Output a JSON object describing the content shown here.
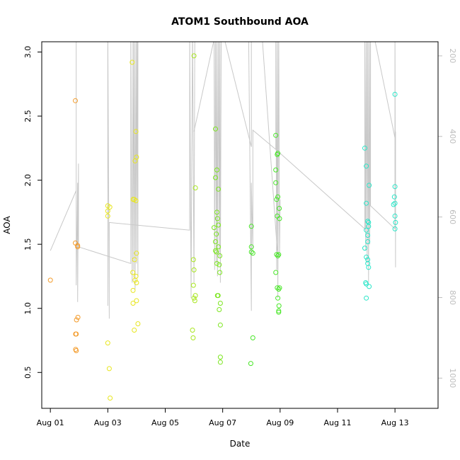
{
  "chart_data": {
    "type": "scatter",
    "title": "ATOM1 Southbound AOA",
    "xlabel": "Date",
    "ylabel": "AOA",
    "x_unit": "days since Aug 01",
    "xlim": [
      -0.3,
      13.5
    ],
    "ylim": [
      0.22,
      3.08
    ],
    "x_ticks": [
      {
        "value": 0,
        "label": "Aug 01"
      },
      {
        "value": 2,
        "label": "Aug 03"
      },
      {
        "value": 4,
        "label": "Aug 05"
      },
      {
        "value": 6,
        "label": "Aug 07"
      },
      {
        "value": 8,
        "label": "Aug 09"
      },
      {
        "value": 10,
        "label": "Aug 11"
      },
      {
        "value": 12,
        "label": "Aug 13"
      }
    ],
    "y_ticks": [
      {
        "value": 0.5,
        "label": "0.5"
      },
      {
        "value": 1.0,
        "label": "1.0"
      },
      {
        "value": 1.5,
        "label": "1.5"
      },
      {
        "value": 2.0,
        "label": "2.0"
      },
      {
        "value": 2.5,
        "label": "2.5"
      },
      {
        "value": 3.0,
        "label": "3.0"
      }
    ],
    "y2_lim": [
      1075,
      165
    ],
    "y2_ticks": [
      {
        "value": 200,
        "label": "200"
      },
      {
        "value": 400,
        "label": "400"
      },
      {
        "value": 600,
        "label": "600"
      },
      {
        "value": 800,
        "label": "800"
      },
      {
        "value": 1000,
        "label": "1000"
      }
    ],
    "line_color": "#c8c8c8",
    "point_groups": [
      {
        "color": "#f39b2a",
        "points": [
          [
            0.0,
            1.22
          ],
          [
            0.87,
            2.62
          ],
          [
            0.87,
            1.51
          ],
          [
            0.95,
            1.48
          ],
          [
            0.95,
            1.49
          ],
          [
            0.88,
            0.8
          ],
          [
            0.9,
            0.8
          ],
          [
            0.91,
            0.91
          ],
          [
            0.96,
            0.93
          ],
          [
            0.88,
            0.68
          ],
          [
            0.9,
            0.67
          ]
        ]
      },
      {
        "color": "#e8e61f",
        "points": [
          [
            2.0,
            1.8
          ],
          [
            2.0,
            1.76
          ],
          [
            2.07,
            1.79
          ],
          [
            2.0,
            1.72
          ],
          [
            2.0,
            0.73
          ],
          [
            2.05,
            0.53
          ],
          [
            2.08,
            0.3
          ],
          [
            2.85,
            2.92
          ],
          [
            2.98,
            2.38
          ],
          [
            3.0,
            2.18
          ],
          [
            2.95,
            2.15
          ],
          [
            2.88,
            1.85
          ],
          [
            2.92,
            1.85
          ],
          [
            2.98,
            1.84
          ],
          [
            3.0,
            1.43
          ],
          [
            2.93,
            1.38
          ],
          [
            2.87,
            1.28
          ],
          [
            2.98,
            1.25
          ],
          [
            2.95,
            1.22
          ],
          [
            3.0,
            1.2
          ],
          [
            2.88,
            1.14
          ],
          [
            3.0,
            1.06
          ],
          [
            2.88,
            1.04
          ],
          [
            3.05,
            0.88
          ],
          [
            2.92,
            0.83
          ]
        ]
      },
      {
        "color": "#a8e61f",
        "points": [
          [
            5.0,
            2.97
          ],
          [
            5.05,
            1.94
          ],
          [
            4.98,
            1.38
          ],
          [
            5.0,
            1.3
          ],
          [
            4.98,
            1.18
          ],
          [
            5.05,
            1.1
          ],
          [
            5.0,
            1.08
          ],
          [
            5.03,
            1.06
          ],
          [
            4.95,
            0.83
          ],
          [
            4.97,
            0.77
          ]
        ]
      },
      {
        "color": "#7ce61f",
        "points": [
          [
            5.75,
            2.4
          ],
          [
            5.8,
            2.08
          ],
          [
            5.75,
            2.02
          ],
          [
            5.85,
            1.93
          ],
          [
            5.8,
            1.75
          ],
          [
            5.82,
            1.7
          ],
          [
            5.85,
            1.65
          ],
          [
            5.7,
            1.63
          ],
          [
            5.78,
            1.58
          ],
          [
            5.75,
            1.52
          ],
          [
            5.75,
            1.45
          ],
          [
            5.78,
            1.44
          ],
          [
            5.85,
            1.48
          ],
          [
            5.9,
            1.41
          ],
          [
            5.8,
            1.35
          ],
          [
            5.88,
            1.34
          ],
          [
            5.9,
            1.28
          ],
          [
            5.82,
            1.1
          ],
          [
            5.84,
            1.1
          ],
          [
            5.92,
            1.04
          ],
          [
            5.88,
            0.99
          ],
          [
            5.92,
            0.87
          ],
          [
            5.92,
            0.62
          ],
          [
            5.92,
            0.58
          ]
        ]
      },
      {
        "color": "#49e628",
        "points": [
          [
            7.0,
            1.64
          ],
          [
            7.0,
            1.48
          ],
          [
            7.0,
            1.44
          ],
          [
            7.05,
            1.43
          ],
          [
            7.05,
            0.77
          ],
          [
            6.98,
            0.57
          ],
          [
            7.85,
            2.35
          ],
          [
            7.92,
            2.21
          ],
          [
            7.9,
            2.2
          ],
          [
            7.85,
            2.08
          ],
          [
            7.85,
            1.98
          ],
          [
            7.92,
            1.87
          ],
          [
            7.88,
            1.85
          ],
          [
            7.97,
            1.78
          ],
          [
            7.9,
            1.72
          ],
          [
            7.98,
            1.7
          ],
          [
            7.88,
            1.42
          ],
          [
            7.92,
            1.41
          ],
          [
            7.95,
            1.42
          ],
          [
            7.85,
            1.28
          ],
          [
            7.9,
            1.16
          ],
          [
            7.95,
            1.15
          ],
          [
            7.98,
            1.16
          ],
          [
            7.92,
            1.08
          ],
          [
            7.96,
            1.02
          ],
          [
            7.95,
            0.98
          ],
          [
            7.95,
            0.97
          ]
        ]
      },
      {
        "color": "#2ae6c8",
        "points": [
          [
            10.95,
            2.25
          ],
          [
            11.0,
            2.11
          ],
          [
            11.1,
            1.96
          ],
          [
            11.0,
            1.82
          ],
          [
            11.05,
            1.68
          ],
          [
            11.08,
            1.67
          ],
          [
            11.08,
            1.64
          ],
          [
            11.0,
            1.61
          ],
          [
            11.05,
            1.57
          ],
          [
            11.05,
            1.52
          ],
          [
            10.95,
            1.47
          ],
          [
            11.0,
            1.4
          ],
          [
            11.05,
            1.38
          ],
          [
            11.05,
            1.35
          ],
          [
            11.08,
            1.32
          ],
          [
            10.98,
            1.2
          ],
          [
            11.0,
            1.19
          ],
          [
            11.1,
            1.17
          ],
          [
            11.0,
            1.08
          ],
          [
            12.0,
            2.67
          ],
          [
            12.0,
            1.95
          ],
          [
            11.98,
            1.87
          ],
          [
            12.0,
            1.82
          ],
          [
            11.95,
            1.81
          ],
          [
            12.0,
            1.72
          ],
          [
            12.02,
            1.67
          ],
          [
            12.0,
            1.62
          ]
        ]
      }
    ],
    "paths": [
      [
        [
          0.0,
          1.45
        ],
        [
          0.9,
          1.92
        ],
        [
          0.9,
          3.2
        ],
        [
          0.9,
          1.18
        ],
        [
          0.95,
          1.98
        ],
        [
          0.95,
          1.05
        ],
        [
          0.98,
          2.13
        ],
        [
          0.98,
          1.48
        ],
        [
          2.8,
          1.35
        ],
        [
          2.8,
          3.2
        ],
        [
          2.85,
          1.2
        ],
        [
          2.88,
          3.2
        ],
        [
          2.9,
          1.3
        ],
        [
          2.92,
          3.2
        ],
        [
          2.95,
          1.15
        ],
        [
          2.98,
          3.2
        ],
        [
          3.0,
          1.35
        ],
        [
          3.02,
          3.2
        ],
        [
          3.05,
          1.25
        ],
        [
          3.05,
          3.2
        ]
      ],
      [
        [
          2.0,
          1.02
        ],
        [
          2.0,
          3.2
        ],
        [
          2.05,
          0.92
        ],
        [
          2.05,
          1.67
        ],
        [
          4.85,
          1.61
        ],
        [
          4.85,
          3.2
        ],
        [
          4.9,
          1.08
        ],
        [
          4.95,
          3.2
        ],
        [
          5.0,
          1.2
        ],
        [
          5.03,
          3.2
        ]
      ],
      [
        [
          5.0,
          2.38
        ],
        [
          5.8,
          3.2
        ],
        [
          5.7,
          3.2
        ],
        [
          5.72,
          1.3
        ],
        [
          5.75,
          3.2
        ],
        [
          5.78,
          1.35
        ],
        [
          5.8,
          3.2
        ],
        [
          5.82,
          1.25
        ],
        [
          5.85,
          3.2
        ],
        [
          5.88,
          1.4
        ],
        [
          5.9,
          3.2
        ],
        [
          5.92,
          1.2
        ],
        [
          5.95,
          3.2
        ],
        [
          7.0,
          2.26
        ],
        [
          7.0,
          3.2
        ]
      ],
      [
        [
          6.9,
          3.2
        ],
        [
          7.0,
          0.98
        ],
        [
          7.0,
          1.98
        ],
        [
          7.05,
          1.46
        ],
        [
          7.05,
          2.39
        ],
        [
          7.85,
          2.24
        ],
        [
          7.85,
          3.2
        ],
        [
          7.88,
          1.3
        ],
        [
          7.9,
          3.2
        ],
        [
          7.92,
          1.08
        ],
        [
          7.95,
          3.2
        ],
        [
          7.98,
          1.4
        ],
        [
          8.0,
          1.85
        ]
      ],
      [
        [
          7.35,
          3.2
        ],
        [
          7.9,
          1.45
        ]
      ],
      [
        [
          7.95,
          2.22
        ],
        [
          10.95,
          1.62
        ],
        [
          10.95,
          3.2
        ],
        [
          10.98,
          1.45
        ],
        [
          11.0,
          3.2
        ],
        [
          11.03,
          1.35
        ],
        [
          11.05,
          3.2
        ],
        [
          11.08,
          1.2
        ],
        [
          11.1,
          3.2
        ],
        [
          11.12,
          1.5
        ],
        [
          11.15,
          3.2
        ],
        [
          11.15,
          1.8
        ],
        [
          12.0,
          1.62
        ],
        [
          12.0,
          3.2
        ],
        [
          12.02,
          1.32
        ],
        [
          12.02,
          2.38
        ]
      ],
      [
        [
          11.2,
          3.2
        ],
        [
          12.0,
          2.33
        ]
      ]
    ]
  }
}
